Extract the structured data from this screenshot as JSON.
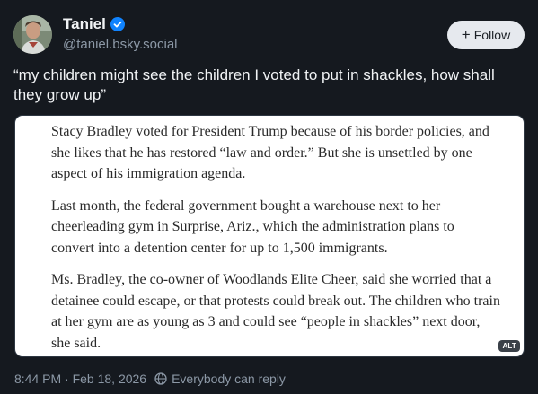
{
  "author": {
    "name": "Taniel",
    "handle": "@taniel.bsky.social",
    "verified": true
  },
  "follow_button": {
    "label": "Follow",
    "icon": "plus-icon"
  },
  "post": {
    "text": "“my children might see the children I voted to put in shackles, how shall they grow up”"
  },
  "image": {
    "alt_badge": "ALT",
    "paragraphs": [
      "Stacy Bradley voted for President Trump because of his border policies, and she likes that he has restored “law and order.” But she is unsettled by one aspect of his immigration agenda.",
      "Last month, the federal government bought a warehouse next to her cheerleading gym in Surprise, Ariz., which the administration plans to convert into a detention center for up to 1,500 immigrants.",
      "Ms. Bradley, the co-owner of Woodlands Elite Cheer, said she worried that a detainee could escape, or that protests could break out. The children who train at her gym are as young as 3 and could see “people in shackles” next door, she said."
    ]
  },
  "meta": {
    "timestamp": "8:44 PM · Feb 18, 2026",
    "reply_setting": "Everybody can reply",
    "reply_icon": "globe-icon"
  },
  "colors": {
    "background": "#15191f",
    "accent": "#1083fe",
    "muted": "#8c98a6"
  }
}
